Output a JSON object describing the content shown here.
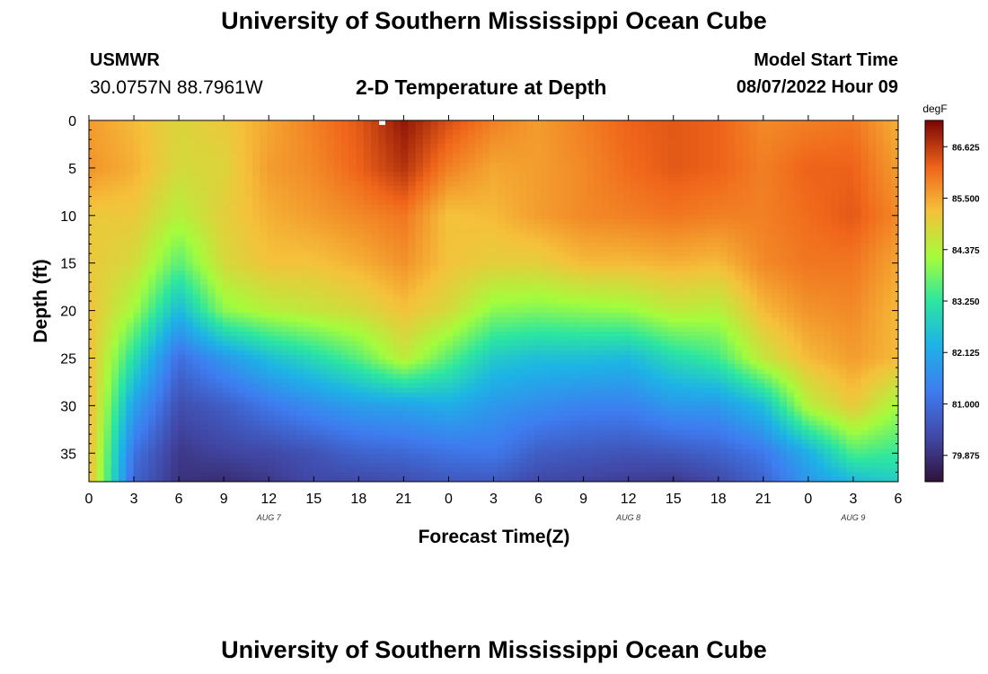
{
  "header": {
    "title": "University of Southern Mississippi Ocean Cube",
    "station": "USMWR",
    "coordinates": "30.0757N  88.7961W",
    "subtitle": "2-D Temperature at Depth",
    "model_start_label": "Model Start Time",
    "model_start_value": "08/07/2022 Hour 09"
  },
  "footer": {
    "title": "University of Southern Mississippi Ocean Cube"
  },
  "chart_data": {
    "type": "heatmap",
    "title": "2-D Temperature at Depth",
    "xlabel": "Forecast Time(Z)",
    "ylabel": "Depth (ft)",
    "x_ticks": [
      "0",
      "3",
      "6",
      "9",
      "12",
      "15",
      "18",
      "21",
      "0",
      "3",
      "6",
      "9",
      "12",
      "15",
      "18",
      "21",
      "0",
      "3",
      "6"
    ],
    "x_range_hours": [
      0,
      54
    ],
    "date_labels": [
      {
        "hour": 12,
        "text": "AUG 7"
      },
      {
        "hour": 36,
        "text": "AUG 8"
      },
      {
        "hour": 51,
        "text": "AUG 9"
      }
    ],
    "y_ticks": [
      0,
      5,
      10,
      15,
      20,
      25,
      30,
      35
    ],
    "ylim": [
      0,
      38
    ],
    "colorbar": {
      "unit": "degF",
      "range": [
        79.3,
        87.2
      ],
      "ticks": [
        "86.625",
        "85.500",
        "84.375",
        "83.250",
        "82.125",
        "81.000",
        "79.875"
      ]
    },
    "time_hours": [
      0,
      3,
      6,
      9,
      12,
      15,
      18,
      21,
      24,
      27,
      30,
      33,
      36,
      39,
      42,
      45,
      48,
      51,
      54
    ],
    "depth_ft": [
      0,
      5,
      10,
      15,
      20,
      25,
      30,
      35,
      38
    ],
    "values_degF": [
      [
        85.6,
        85.7,
        85.1,
        85.1,
        85.2,
        85.3,
        85.4,
        85.4,
        85.4
      ],
      [
        85.3,
        85.4,
        85.1,
        84.8,
        84.2,
        83.1,
        82.0,
        81.1,
        80.8
      ],
      [
        84.9,
        84.8,
        84.4,
        83.6,
        82.4,
        81.0,
        80.4,
        80.0,
        79.9
      ],
      [
        85.1,
        84.9,
        85.0,
        84.8,
        84.0,
        81.8,
        80.7,
        80.2,
        79.8
      ],
      [
        85.5,
        85.6,
        85.4,
        85.2,
        84.4,
        82.5,
        81.2,
        80.3,
        80.0
      ],
      [
        85.9,
        85.8,
        85.6,
        85.2,
        84.6,
        83.0,
        81.6,
        80.5,
        80.3
      ],
      [
        86.3,
        86.2,
        85.8,
        85.4,
        84.8,
        83.6,
        81.9,
        80.8,
        80.3
      ],
      [
        87.0,
        86.7,
        86.0,
        85.7,
        85.2,
        84.5,
        82.0,
        80.9,
        80.4
      ],
      [
        86.4,
        85.9,
        85.2,
        85.2,
        84.8,
        83.6,
        82.2,
        81.1,
        80.6
      ],
      [
        85.9,
        85.5,
        85.3,
        85.0,
        84.0,
        82.7,
        81.8,
        81.2,
        80.6
      ],
      [
        85.6,
        85.6,
        85.6,
        85.0,
        83.9,
        82.5,
        81.6,
        80.7,
        80.3
      ],
      [
        85.9,
        85.8,
        85.8,
        85.3,
        84.0,
        82.5,
        81.4,
        80.6,
        80.2
      ],
      [
        86.2,
        86.1,
        85.9,
        85.3,
        84.1,
        82.4,
        81.4,
        80.5,
        80.1
      ],
      [
        86.3,
        86.3,
        86.0,
        85.4,
        84.5,
        83.0,
        81.8,
        80.6,
        80.0
      ],
      [
        86.2,
        86.2,
        85.9,
        85.3,
        84.4,
        83.4,
        81.8,
        80.8,
        80.3
      ],
      [
        85.8,
        85.9,
        85.9,
        85.8,
        85.3,
        84.6,
        82.5,
        81.2,
        80.8
      ],
      [
        85.9,
        86.2,
        86.1,
        86.0,
        85.7,
        85.3,
        84.4,
        82.2,
        81.8
      ],
      [
        86.0,
        86.2,
        86.3,
        86.0,
        85.8,
        85.6,
        85.1,
        83.5,
        82.4
      ],
      [
        85.4,
        85.6,
        85.8,
        85.5,
        85.3,
        85.3,
        84.2,
        83.3,
        82.8
      ]
    ]
  }
}
